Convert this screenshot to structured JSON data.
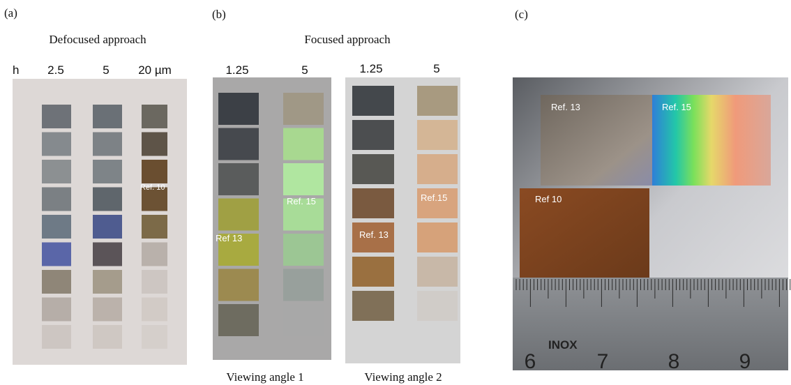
{
  "panels": [
    {
      "label": "(a)",
      "title": "Defocused approach",
      "axis_label": "h",
      "columns": [
        "2.5",
        "5",
        "20 µm"
      ],
      "annotations": [
        "Ref. 10"
      ]
    },
    {
      "label": "(b)",
      "title": "Focused approach",
      "photos": [
        {
          "columns": [
            "1.25",
            "5"
          ],
          "annotations": [
            "Ref 13",
            "Ref. 15"
          ],
          "caption": "Viewing angle 1"
        },
        {
          "columns": [
            "1.25",
            "5"
          ],
          "annotations": [
            "Ref. 13",
            "Ref.15"
          ],
          "caption": "Viewing angle 2"
        }
      ]
    },
    {
      "label": "(c)",
      "annotations": [
        "Ref. 13",
        "Ref. 15",
        "Ref 10"
      ],
      "ruler": {
        "brand": "INOX",
        "numbers": [
          "6",
          "7",
          "8",
          "9"
        ]
      }
    }
  ]
}
